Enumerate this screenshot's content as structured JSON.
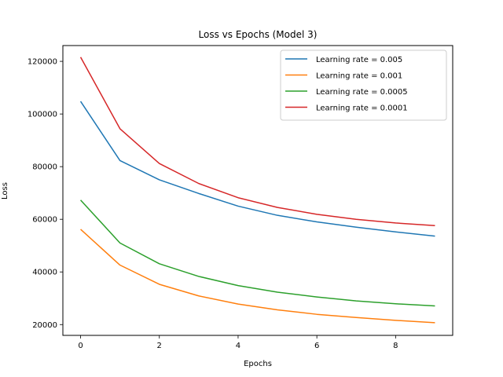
{
  "chart_data": {
    "type": "line",
    "title": "Loss vs Epochs (Model 3)",
    "xlabel": "Epochs",
    "ylabel": "Loss",
    "x": [
      0,
      1,
      2,
      3,
      4,
      5,
      6,
      7,
      8,
      9
    ],
    "xlim": [
      -0.45,
      9.45
    ],
    "ylim": [
      15900,
      126000
    ],
    "xticks": [
      0,
      2,
      4,
      6,
      8
    ],
    "yticks": [
      20000,
      40000,
      60000,
      80000,
      100000,
      120000
    ],
    "grid": false,
    "legend": "top-right",
    "series": [
      {
        "name": "Learning rate = 0.005",
        "color": "#1f77b4",
        "values": [
          104800,
          82300,
          75000,
          69800,
          65000,
          61500,
          59000,
          57000,
          55200,
          53600
        ]
      },
      {
        "name": "Learning rate = 0.001",
        "color": "#ff7f0e",
        "values": [
          56200,
          42600,
          35300,
          30900,
          27800,
          25600,
          23900,
          22700,
          21600,
          20700
        ]
      },
      {
        "name": "Learning rate = 0.0005",
        "color": "#2ca02c",
        "values": [
          67300,
          51000,
          43100,
          38300,
          34800,
          32300,
          30500,
          29000,
          27900,
          27100
        ]
      },
      {
        "name": "Learning rate = 0.0001",
        "color": "#d62728",
        "values": [
          121600,
          94400,
          81200,
          73600,
          68200,
          64500,
          61900,
          60000,
          58600,
          57600
        ]
      }
    ]
  }
}
